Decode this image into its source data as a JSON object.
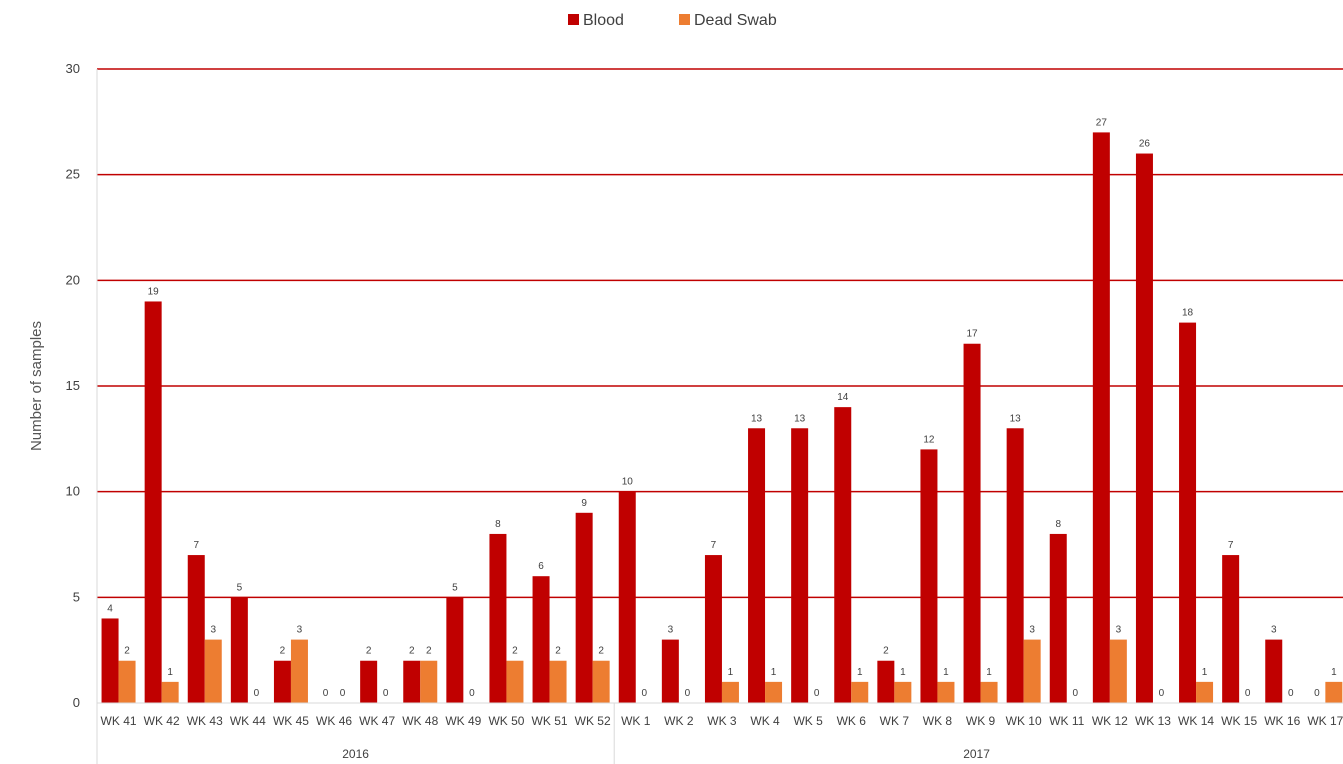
{
  "chart_data": {
    "type": "bar",
    "title": "",
    "ylabel": "Number of samples",
    "xlabel": "",
    "ylim": [
      0,
      30
    ],
    "yticks": [
      0,
      5,
      10,
      15,
      20,
      25,
      30
    ],
    "grid": true,
    "legend_position": "top-center",
    "categories": [
      "WK 41",
      "WK 42",
      "WK 43",
      "WK 44",
      "WK 45",
      "WK 46",
      "WK 47",
      "WK 48",
      "WK 49",
      "WK 50",
      "WK 51",
      "WK 52",
      "WK 1",
      "WK 2",
      "WK 3",
      "WK 4",
      "WK 5",
      "WK 6",
      "WK 7",
      "WK 8",
      "WK 9",
      "WK 10",
      "WK 11",
      "WK 12",
      "WK 13",
      "WK 14",
      "WK 15",
      "WK 16",
      "WK 17"
    ],
    "groups": [
      {
        "label": "2016",
        "count": 12
      },
      {
        "label": "2017",
        "count": 17
      }
    ],
    "series": [
      {
        "name": "Blood",
        "color": "#c00000",
        "values": [
          4,
          19,
          7,
          5,
          2,
          0,
          2,
          2,
          5,
          8,
          6,
          9,
          10,
          3,
          7,
          13,
          13,
          14,
          2,
          12,
          17,
          13,
          8,
          27,
          26,
          18,
          7,
          3,
          0
        ]
      },
      {
        "name": "Dead Swab",
        "color": "#ed7d31",
        "values": [
          2,
          1,
          3,
          0,
          3,
          0,
          0,
          2,
          0,
          2,
          2,
          2,
          0,
          0,
          1,
          1,
          0,
          1,
          1,
          1,
          1,
          3,
          0,
          3,
          0,
          1,
          0,
          0,
          1
        ]
      }
    ]
  }
}
